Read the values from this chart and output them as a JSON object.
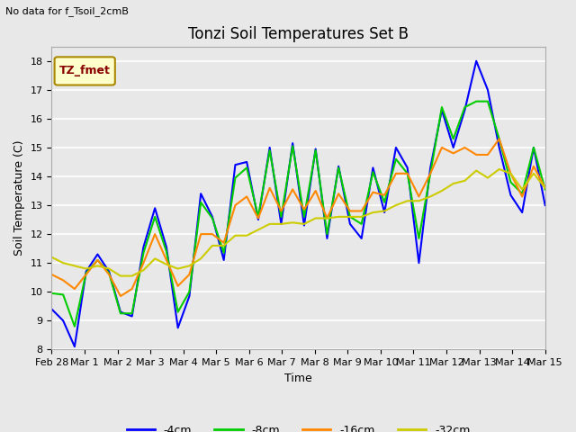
{
  "title": "Tonzi Soil Temperatures Set B",
  "xlabel": "Time",
  "ylabel": "Soil Temperature (C)",
  "no_data_text": "No data for f_Tsoil_2cmB",
  "legend_label": "TZ_fmet",
  "ylim": [
    8.0,
    18.5
  ],
  "yticks": [
    8.0,
    9.0,
    10.0,
    11.0,
    12.0,
    13.0,
    14.0,
    15.0,
    16.0,
    17.0,
    18.0
  ],
  "line_colors": {
    "-4cm": "#0000FF",
    "-8cm": "#00CC00",
    "-16cm": "#FF8800",
    "-32cm": "#CCCC00"
  },
  "line_labels": [
    "-4cm",
    "-8cm",
    "-16cm",
    "-32cm"
  ],
  "bg_color": "#E8E8E8",
  "xtick_labels": [
    "Feb 28",
    "Mar 1",
    "Mar 2",
    "Mar 3",
    "Mar 4",
    "Mar 5",
    "Mar 6",
    "Mar 7",
    "Mar 8",
    "Mar 9",
    "Mar 10",
    "Mar 11",
    "Mar 12",
    "Mar 13",
    "Mar 14",
    "Mar 15"
  ],
  "series_4cm": [
    9.4,
    9.0,
    8.1,
    10.7,
    11.3,
    10.7,
    9.3,
    9.15,
    11.55,
    12.9,
    11.55,
    8.75,
    9.85,
    13.4,
    12.6,
    11.1,
    14.4,
    14.5,
    12.5,
    15.0,
    12.35,
    15.15,
    12.3,
    14.95,
    11.85,
    14.35,
    12.35,
    11.85,
    14.3,
    12.75,
    15.0,
    14.3,
    11.0,
    14.3,
    16.3,
    15.0,
    16.3,
    18.0,
    17.0,
    15.0,
    13.35,
    12.75,
    15.0,
    13.0
  ],
  "series_8cm": [
    9.95,
    9.9,
    8.8,
    10.65,
    11.1,
    10.65,
    9.25,
    9.25,
    11.35,
    12.6,
    11.4,
    9.3,
    10.0,
    13.1,
    12.55,
    11.35,
    13.95,
    14.3,
    12.6,
    14.9,
    12.6,
    15.05,
    12.6,
    14.9,
    12.0,
    14.3,
    12.6,
    12.35,
    14.15,
    13.1,
    14.6,
    14.1,
    11.85,
    14.1,
    16.4,
    15.3,
    16.4,
    16.6,
    16.6,
    15.3,
    13.8,
    13.4,
    15.0,
    13.55
  ],
  "series_16cm": [
    10.6,
    10.4,
    10.1,
    10.6,
    11.1,
    10.6,
    9.85,
    10.1,
    11.0,
    12.0,
    11.1,
    10.2,
    10.6,
    12.0,
    12.0,
    11.7,
    13.0,
    13.3,
    12.55,
    13.6,
    12.8,
    13.55,
    12.85,
    13.5,
    12.55,
    13.4,
    12.8,
    12.8,
    13.45,
    13.35,
    14.1,
    14.1,
    13.3,
    14.1,
    15.0,
    14.8,
    15.0,
    14.75,
    14.75,
    15.3,
    14.1,
    13.3,
    14.35,
    13.6
  ],
  "series_32cm": [
    11.2,
    11.0,
    10.9,
    10.8,
    10.9,
    10.8,
    10.55,
    10.55,
    10.75,
    11.15,
    10.95,
    10.8,
    10.9,
    11.15,
    11.6,
    11.6,
    11.95,
    11.95,
    12.15,
    12.35,
    12.35,
    12.4,
    12.35,
    12.55,
    12.55,
    12.6,
    12.6,
    12.6,
    12.75,
    12.8,
    13.0,
    13.15,
    13.15,
    13.3,
    13.5,
    13.75,
    13.85,
    14.2,
    13.95,
    14.25,
    14.1,
    13.55,
    14.1,
    13.6
  ],
  "title_fontsize": 12,
  "axis_label_fontsize": 9,
  "tick_fontsize": 8,
  "legend_fontsize": 9
}
